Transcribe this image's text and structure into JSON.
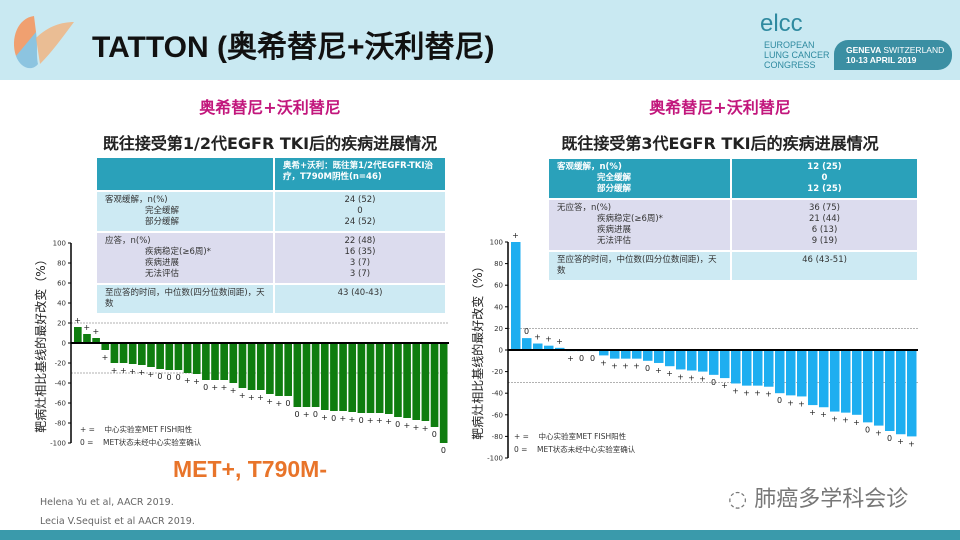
{
  "header": {
    "title": "TATTON (奥希替尼+沃利替尼)",
    "logo_text": "elcc",
    "congress": [
      "EUROPEAN",
      "LUNG CANCER",
      "CONGRESS"
    ],
    "location_bold": "GENEVA",
    "location": "SWITZERLAND",
    "dates": "10-13 APRIL 2019"
  },
  "left": {
    "title": "奥希替尼+沃利替尼",
    "subtitle": "既往接受第1/2代EGFR TKI后的疾病进展情况",
    "table": {
      "header": "奥希+沃利：既往第1/2代EGFR-TKI治疗，T790M阴性(n=46)",
      "rows": [
        {
          "labels": [
            "客观缓解，n(%)",
            "完全缓解",
            "部分缓解"
          ],
          "values": [
            "24 (52)",
            "0",
            "24 (52)"
          ]
        },
        {
          "labels": [
            "应答，n(%)",
            "疾病稳定(≥6周)*",
            "疾病进展",
            "无法评估"
          ],
          "values": [
            "22 (48)",
            "16 (35)",
            "3 (7)",
            "3 (7)"
          ]
        },
        {
          "labels": [
            "至应答的时间，中位数(四分位数间距)，天数"
          ],
          "values": [
            "43 (40-43)"
          ]
        }
      ]
    },
    "tag": "MET+, T790M-"
  },
  "right": {
    "title": "奥希替尼+沃利替尼",
    "subtitle": "既往接受第3代EGFR TKI后的疾病进展情况",
    "table": {
      "rows": [
        {
          "labels": [
            "客观缓解，n(%)",
            "完全缓解",
            "部分缓解"
          ],
          "values": [
            "12 (25)",
            "0",
            "12 (25)"
          ]
        },
        {
          "labels": [
            "无应答，n(%)",
            "疾病稳定(≥6周)*",
            "疾病进展",
            "无法评估"
          ],
          "values": [
            "36 (75)",
            "21 (44)",
            "6 (13)",
            "9 (19)"
          ]
        },
        {
          "labels": [
            "至应答的时间，中位数(四分位数间距)，天数"
          ],
          "values": [
            "46 (43-51)"
          ]
        }
      ]
    }
  },
  "legend": {
    "plus": "+ =",
    "plus_text": "中心实验室MET FISH阳性",
    "zero": "0 =",
    "zero_text": "MET状态未经中心实验室确认"
  },
  "chart_data": [
    {
      "type": "bar",
      "title": "",
      "ylabel": "靶病灶相比基线的最好改变（%）",
      "ylim": [
        -100,
        100
      ],
      "yticks": [
        100,
        80,
        60,
        40,
        20,
        0,
        -20,
        -40,
        -60,
        -80,
        -100
      ],
      "reference_lines": [
        20,
        -30
      ],
      "color": "#0f7d0f",
      "values": [
        16,
        9,
        5,
        -7,
        -20,
        -20,
        -21,
        -22,
        -24,
        -26,
        -27,
        -27,
        -30,
        -31,
        -37,
        -37,
        -37,
        -40,
        -45,
        -47,
        -47,
        -51,
        -53,
        -53,
        -64,
        -64,
        -64,
        -67,
        -68,
        -68,
        -69,
        -70,
        -70,
        -70,
        -71,
        -74,
        -75,
        -77,
        -78,
        -84,
        -100
      ],
      "markers": [
        "+",
        "+",
        "+",
        "+",
        "+",
        "+",
        "+",
        "+",
        "+",
        "0",
        "0",
        "0",
        "+",
        "+",
        "0",
        "+",
        "+",
        "+",
        "+",
        "+",
        "+",
        "+",
        "+",
        "0",
        "0",
        "+",
        "0",
        "+",
        "0",
        "+",
        "+",
        "0",
        "+",
        "+",
        "+",
        "0",
        "+",
        "+",
        "+",
        "0",
        "0"
      ]
    },
    {
      "type": "bar",
      "title": "",
      "ylabel": "靶病灶相比基线的最好改变（%）",
      "ylim": [
        -100,
        100
      ],
      "yticks": [
        100,
        80,
        60,
        40,
        20,
        0,
        -20,
        -40,
        -60,
        -80,
        -100
      ],
      "reference_lines": [
        20,
        -30
      ],
      "color": "#1eaef0",
      "values": [
        100,
        11,
        6,
        4,
        2,
        -1,
        -1,
        -1,
        -5,
        -8,
        -8,
        -8,
        -10,
        -12,
        -15,
        -18,
        -19,
        -20,
        -23,
        -26,
        -31,
        -33,
        -33,
        -34,
        -40,
        -42,
        -43,
        -51,
        -53,
        -57,
        -58,
        -60,
        -67,
        -70,
        -75,
        -78,
        -80
      ],
      "markers": [
        "+",
        "0",
        "+",
        "+",
        "+",
        "+",
        "0",
        "0",
        "+",
        "+",
        "+",
        "+",
        "0",
        "+",
        "+",
        "+",
        "+",
        "+",
        "0",
        "+",
        "+",
        "+",
        "+",
        "+",
        "0",
        "+",
        "+",
        "+",
        "+",
        "+",
        "+",
        "+",
        "0",
        "+",
        "0",
        "+",
        "+"
      ]
    }
  ],
  "references": [
    "Helena Yu et al, AACR 2019.",
    "Lecia V.Sequist et al AACR 2019."
  ],
  "watermark": "肺癌多学科会诊"
}
